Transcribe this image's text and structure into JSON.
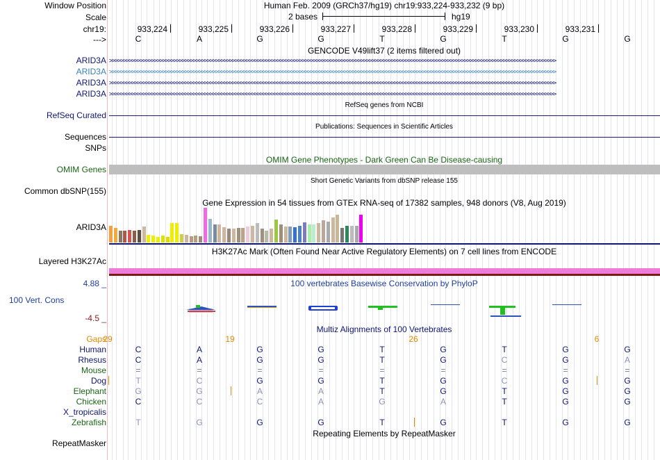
{
  "header": {
    "window_position_label": "Window Position",
    "window_position_value": "Human Feb. 2009 (GRCh37/hg19)   chr19:933,224-933,232 (9 bp)",
    "scale_label": "Scale",
    "scale_bases": "2 bases",
    "scale_assembly": "hg19",
    "chrom_label": "chr19:",
    "strand_label": "--->",
    "positions": [
      "933,224",
      "933,225",
      "933,226",
      "933,227",
      "933,228",
      "933,229",
      "933,230",
      "933,231"
    ],
    "bases": [
      "C",
      "A",
      "G",
      "G",
      "T",
      "G",
      "T",
      "G",
      "G"
    ]
  },
  "gencode": {
    "title": "GENCODE V49lift37 (2 items filtered out)",
    "tracks": [
      {
        "name": "ARID3A",
        "color": "#0f1670"
      },
      {
        "name": "ARID3A",
        "color": "#3b80b8"
      },
      {
        "name": "ARID3A",
        "color": "#0f1670"
      },
      {
        "name": "ARID3A",
        "color": "#0f1670"
      }
    ]
  },
  "refseq": {
    "title": "RefSeq genes from NCBI",
    "label": "RefSeq Curated"
  },
  "publications": {
    "title": "Publications: Sequences in Scientific Articles",
    "label": "Sequences"
  },
  "snps": {
    "label": "SNPs"
  },
  "omim": {
    "title": "OMIM Gene Phenotypes - Dark Green Can Be Disease-causing",
    "label": "OMIM Genes",
    "color": "#1a6414"
  },
  "dbsnp": {
    "title": "Short Genetic Variants from dbSNP release 155",
    "label": "Common dbSNP(155)"
  },
  "gtex": {
    "title": "Gene Expression in 54 tissues from GTEx RNA-seq of 17382 samples, 948 donors (V8, Aug 2019)",
    "label": "ARID3A",
    "values": [
      0.6,
      0.52,
      0.42,
      0.42,
      0.46,
      0.42,
      0.45,
      0.58,
      0.27,
      0.24,
      0.2,
      0.24,
      0.2,
      0.7,
      0.7,
      0.3,
      0.28,
      0.22,
      0.26,
      0.22,
      1.25,
      0.86,
      0.66,
      0.66,
      0.56,
      0.5,
      0.5,
      0.52,
      0.52,
      0.58,
      0.6,
      0.7,
      0.5,
      0.42,
      0.5,
      0.82,
      0.66,
      0.58,
      0.58,
      0.56,
      0.6,
      0.72,
      0.66,
      0.66,
      0.7,
      0.8,
      0.76,
      0.9,
      1.0,
      0.52,
      0.6,
      0.6,
      0.6,
      1.0
    ],
    "colors": [
      "#f4a041",
      "#f2aa3a",
      "#8b7765",
      "#a95a48",
      "#d8534d",
      "#8b5e48",
      "#5e4e42",
      "#cdb79e",
      "#eeee00",
      "#eeee00",
      "#eeee00",
      "#e0e000",
      "#dcdc00",
      "#eeee00",
      "#eeee00",
      "#d0d044",
      "#cdb79e",
      "#b89888",
      "#b4a07a",
      "#a0887a",
      "#ee6ce2",
      "#9ab8cb",
      "#7a8aa0",
      "#cdb79e",
      "#cdb79e",
      "#9a8878",
      "#cdb79e",
      "#a09080",
      "#bca48a",
      "#eeccdd",
      "#cdb79e",
      "#bcbcbc",
      "#a09080",
      "#bbbbaa",
      "#cdb79e",
      "#9ac840",
      "#9f8d7c",
      "#cdb79e",
      "#7d9dbd",
      "#3a70d0",
      "#4c80cc",
      "#7d7dbd",
      "#aaeeaa",
      "#bbeecc",
      "#cdb79e",
      "#bca898",
      "#aaaaaa",
      "#cdb79e",
      "#c8b898",
      "#777777",
      "#2a8a5a",
      "#bbbbbb",
      "#aaaaaa",
      "#ee00ee"
    ]
  },
  "h3k27ac": {
    "title": "H3K27Ac Mark (Often Found Near Active Regulatory Elements) on 7 cell lines from ENCODE",
    "label": "Layered H3K27Ac"
  },
  "conservation": {
    "title": "100 vertebrates Basewise Conservation by PhyloP",
    "label": "100 Vert. Cons",
    "max": "4.88 _",
    "min": "-4.5 _"
  },
  "multiz": {
    "title": "Multiz Alignments of 100 Vertebrates",
    "gaps_label": "Gaps",
    "gap_counts": [
      "29",
      "19",
      "26",
      "6"
    ],
    "species": [
      {
        "name": "Human",
        "color": "#0f1670",
        "bases": [
          "C",
          "A",
          "G",
          "G",
          "T",
          "G",
          "T",
          "G",
          "G"
        ]
      },
      {
        "name": "Rhesus",
        "color": "#0f1670",
        "bases": [
          "C",
          "A",
          "G",
          "G",
          "T",
          "G",
          "C",
          "G",
          "A"
        ]
      },
      {
        "name": "Mouse",
        "color": "#1a6414",
        "bases": [
          "=",
          "=",
          "=",
          "=",
          "=",
          "=",
          "=",
          "=",
          "="
        ]
      },
      {
        "name": "Dog",
        "color": "#0f1670",
        "bases": [
          "T",
          "C",
          "G",
          "G",
          "T",
          "G",
          "C",
          "G",
          "G"
        ]
      },
      {
        "name": "Elephant",
        "color": "#1a6414",
        "bases": [
          "G",
          "G",
          "A",
          "A",
          "T",
          "G",
          "T",
          "G",
          "G"
        ]
      },
      {
        "name": "Chicken",
        "color": "#1a6414",
        "bases": [
          "C",
          "C",
          "C",
          "A",
          "G",
          "A",
          "T",
          "G",
          "G"
        ]
      },
      {
        "name": "X_tropicalis",
        "color": "#0f1670",
        "bases": [
          "",
          "",
          "",
          "",
          "",
          "",
          "",
          "",
          ""
        ]
      },
      {
        "name": "Zebrafish",
        "color": "#1a6414",
        "bases": [
          "T",
          "G",
          "G",
          "G",
          "T",
          "G",
          "T",
          "G",
          "G"
        ]
      }
    ]
  },
  "repeatmasker": {
    "title": "Repeating Elements by RepeatMasker",
    "label": "RepeatMasker"
  }
}
